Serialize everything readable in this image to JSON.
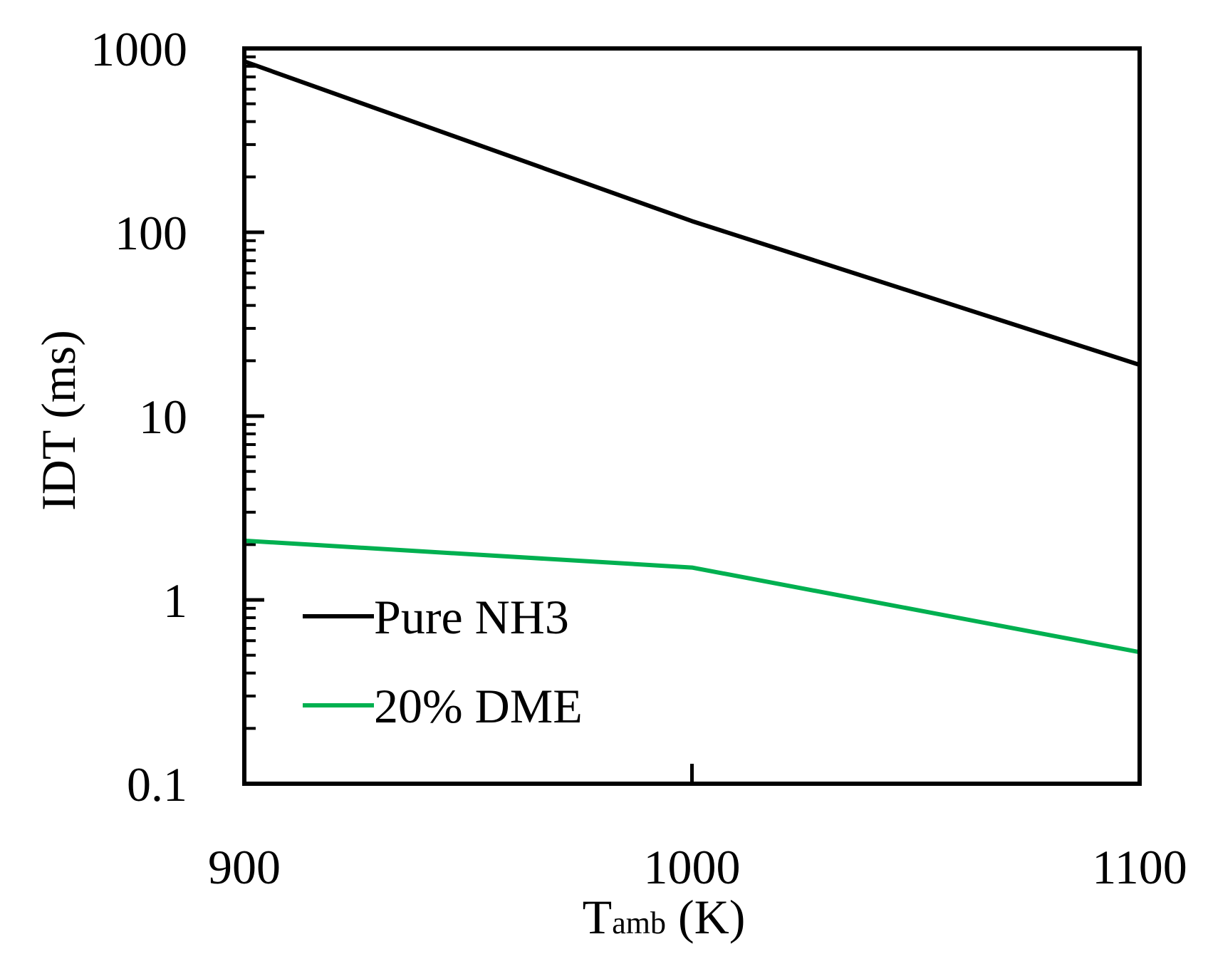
{
  "chart_data": {
    "type": "line",
    "title": "",
    "xlabel_main": "T",
    "xlabel_sub": "amb",
    "xlabel_unit": " (K)",
    "ylabel": "IDT (ms)",
    "xscale": "linear",
    "yscale": "log",
    "xlim": [
      900,
      1100
    ],
    "ylim": [
      0.1,
      1000
    ],
    "xticks": [
      900,
      1000,
      1100
    ],
    "xtick_labels": [
      "900",
      "1000",
      "1100"
    ],
    "yticks": [
      0.1,
      1,
      10,
      100,
      1000
    ],
    "ytick_labels": [
      "0.1",
      "1",
      "10",
      "100",
      "1000"
    ],
    "grid": false,
    "legend_position": "bottom-left",
    "series": [
      {
        "name": "Pure NH3",
        "color": "#000000",
        "x": [
          900,
          1000,
          1100
        ],
        "y": [
          850,
          115,
          19
        ]
      },
      {
        "name": "20% DME",
        "color": "#00b050",
        "x": [
          900,
          1000,
          1100
        ],
        "y": [
          2.1,
          1.5,
          0.52
        ]
      }
    ]
  }
}
